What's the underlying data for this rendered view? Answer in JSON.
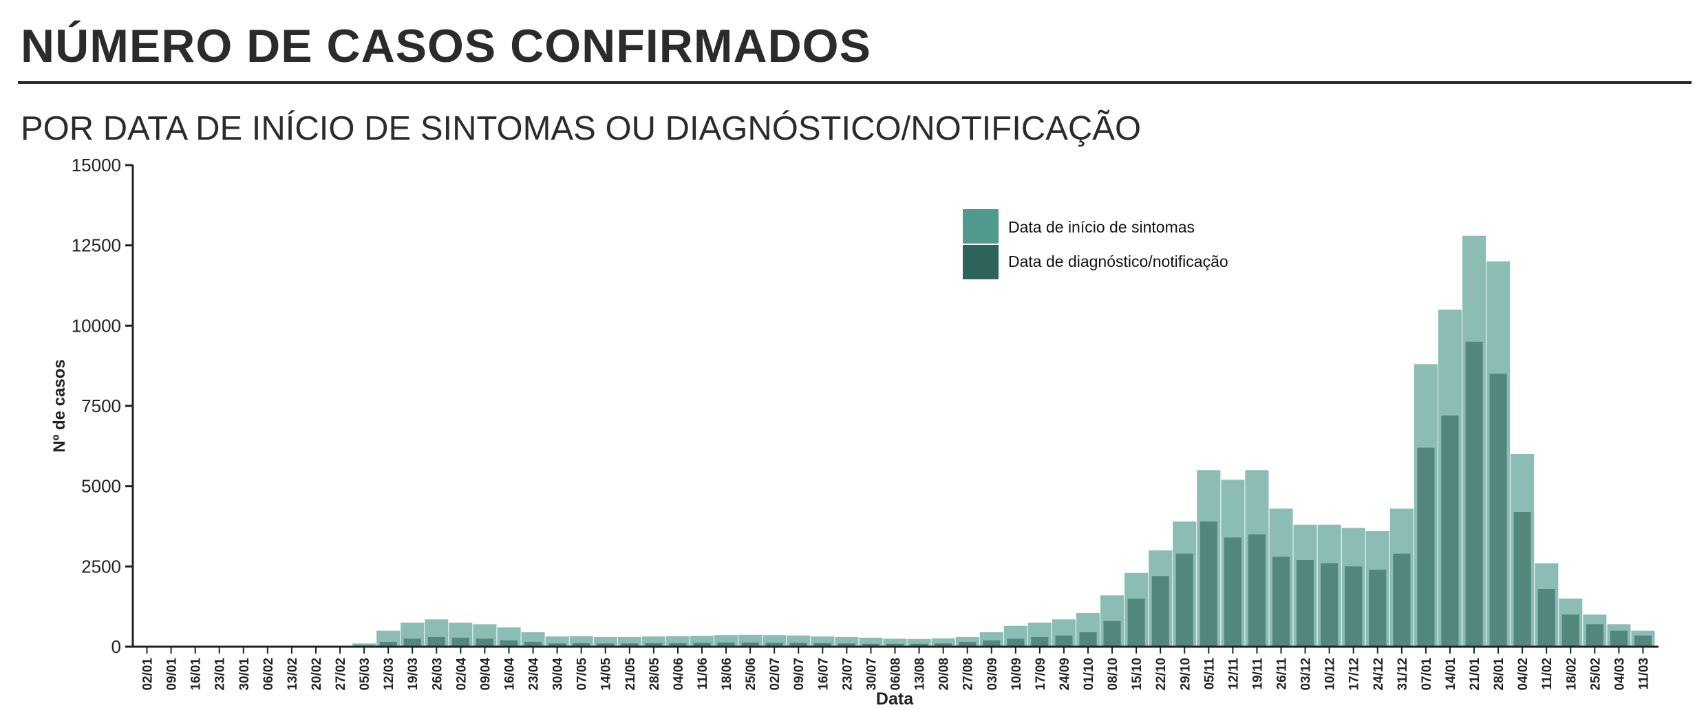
{
  "header": {
    "title": "NÚMERO DE CASOS CONFIRMADOS",
    "subtitle": "POR DATA DE INÍCIO DE SINTOMAS OU DIAGNÓSTICO/NOTIFICAÇÃO"
  },
  "chart_data": {
    "type": "bar",
    "stacked": false,
    "xlabel": "Data",
    "ylabel": "Nº de casos",
    "ylim": [
      0,
      15000
    ],
    "y_ticks": [
      0,
      2500,
      5000,
      7500,
      10000,
      12500,
      15000
    ],
    "x_tick_labels": [
      "02/01",
      "09/01",
      "16/01",
      "23/01",
      "30/01",
      "06/02",
      "13/02",
      "20/02",
      "27/02",
      "05/03",
      "12/03",
      "19/03",
      "26/03",
      "02/04",
      "09/04",
      "16/04",
      "23/04",
      "30/04",
      "07/05",
      "14/05",
      "21/05",
      "28/05",
      "04/06",
      "11/06",
      "18/06",
      "25/06",
      "02/07",
      "09/07",
      "16/07",
      "23/07",
      "30/07",
      "06/08",
      "13/08",
      "20/08",
      "27/08",
      "03/09",
      "10/09",
      "17/09",
      "24/09",
      "01/10",
      "08/10",
      "15/10",
      "22/10",
      "29/10",
      "05/11",
      "12/11",
      "19/11",
      "26/11",
      "03/12",
      "10/12",
      "17/12",
      "24/12",
      "31/12",
      "07/01",
      "14/01",
      "21/01",
      "28/01",
      "04/02",
      "11/02",
      "18/02",
      "25/02",
      "04/03",
      "11/03"
    ],
    "grid": false,
    "legend_position": "top-right",
    "colors": {
      "Data de início de sintomas": "#4f9a8d",
      "Data de diagnóstico/notificação": "#2d6359"
    },
    "series": [
      {
        "name": "Data de início de sintomas",
        "weekly_approx_values": [
          0,
          0,
          0,
          0,
          0,
          0,
          0,
          0,
          0,
          100,
          500,
          750,
          850,
          750,
          700,
          600,
          450,
          320,
          330,
          300,
          300,
          320,
          330,
          340,
          360,
          370,
          360,
          350,
          320,
          300,
          280,
          250,
          240,
          260,
          300,
          450,
          650,
          750,
          850,
          1050,
          1600,
          2300,
          3000,
          3900,
          5500,
          5200,
          5500,
          4300,
          3800,
          3800,
          3700,
          3600,
          4300,
          8800,
          10500,
          12800,
          12000,
          6000,
          2600,
          1500,
          1000,
          700,
          500
        ]
      },
      {
        "name": "Data de diagnóstico/notificação",
        "weekly_approx_values": [
          0,
          0,
          0,
          0,
          0,
          0,
          0,
          0,
          0,
          40,
          150,
          250,
          300,
          280,
          250,
          200,
          150,
          100,
          110,
          100,
          100,
          110,
          110,
          120,
          130,
          130,
          120,
          120,
          110,
          100,
          90,
          90,
          90,
          100,
          150,
          200,
          250,
          300,
          350,
          450,
          800,
          1500,
          2200,
          2900,
          3900,
          3400,
          3500,
          2800,
          2700,
          2600,
          2500,
          2400,
          2900,
          6200,
          7200,
          9500,
          8500,
          4200,
          1800,
          1000,
          700,
          500,
          350
        ]
      }
    ]
  }
}
